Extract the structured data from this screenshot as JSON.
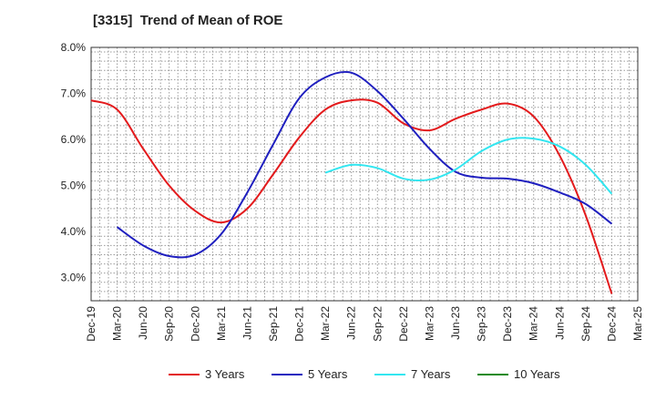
{
  "chart_data": {
    "type": "line",
    "title": "[3315]  Trend of Mean of ROE",
    "xlabel": "",
    "ylabel": "",
    "x": [
      "Dec-19",
      "Mar-20",
      "Jun-20",
      "Sep-20",
      "Dec-20",
      "Mar-21",
      "Jun-21",
      "Sep-21",
      "Dec-21",
      "Mar-22",
      "Jun-22",
      "Sep-22",
      "Dec-22",
      "Mar-23",
      "Jun-23",
      "Sep-23",
      "Dec-23",
      "Mar-24",
      "Jun-24",
      "Sep-24",
      "Dec-24",
      "Mar-25"
    ],
    "ylim": [
      2.5,
      8.0
    ],
    "yticks": [
      3.0,
      4.0,
      5.0,
      6.0,
      7.0,
      8.0
    ],
    "ytick_labels": [
      "3.0%",
      "4.0%",
      "5.0%",
      "6.0%",
      "7.0%",
      "8.0%"
    ],
    "grid": true,
    "legend_position": "bottom",
    "series": [
      {
        "name": "3 Years",
        "color": "#e31a1c",
        "values": [
          6.85,
          6.65,
          5.8,
          5.0,
          4.45,
          4.2,
          4.5,
          5.25,
          6.05,
          6.65,
          6.85,
          6.8,
          6.35,
          6.2,
          6.45,
          6.65,
          6.78,
          6.5,
          5.65,
          4.35,
          2.65,
          null
        ]
      },
      {
        "name": "5 Years",
        "color": "#1f1fbf",
        "values": [
          null,
          4.1,
          3.7,
          3.47,
          3.5,
          3.95,
          4.85,
          5.9,
          6.9,
          7.35,
          7.45,
          7.05,
          6.45,
          5.8,
          5.3,
          5.17,
          5.15,
          5.05,
          4.85,
          4.6,
          4.17,
          null
        ]
      },
      {
        "name": "7 Years",
        "color": "#33e6f0",
        "values": [
          null,
          null,
          null,
          null,
          null,
          null,
          null,
          null,
          null,
          5.28,
          5.45,
          5.38,
          5.15,
          5.13,
          5.35,
          5.75,
          6.0,
          6.02,
          5.85,
          5.45,
          4.82,
          null
        ]
      },
      {
        "name": "10 Years",
        "color": "#1a8a1a",
        "values": [
          null,
          null,
          null,
          null,
          null,
          null,
          null,
          null,
          null,
          null,
          null,
          null,
          null,
          null,
          null,
          null,
          null,
          null,
          null,
          null,
          null,
          null
        ]
      }
    ]
  }
}
